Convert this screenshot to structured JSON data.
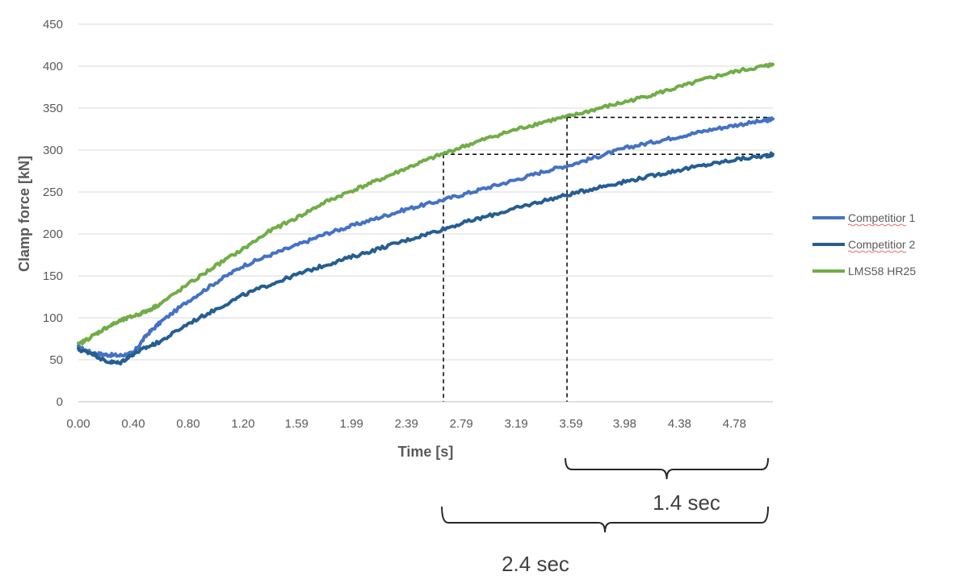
{
  "chart_data": {
    "type": "line",
    "xlabel": "Time [s]",
    "ylabel": "Clamp force [kN]",
    "xlim": [
      0,
      5.06
    ],
    "ylim": [
      0,
      450
    ],
    "x_ticks": [
      "0.00",
      "0.40",
      "0.80",
      "1.20",
      "1.59",
      "1.99",
      "2.39",
      "2.79",
      "3.19",
      "3.59",
      "3.98",
      "4.38",
      "4.78"
    ],
    "x_tick_values": [
      0.0,
      0.4,
      0.8,
      1.2,
      1.59,
      1.99,
      2.39,
      2.79,
      3.19,
      3.59,
      3.98,
      4.38,
      4.78
    ],
    "y_ticks": [
      0,
      50,
      100,
      150,
      200,
      250,
      300,
      350,
      400,
      450
    ],
    "grid": "horizontal",
    "legend_position": "right",
    "series": [
      {
        "name": "Competitior 1",
        "color": "#4472C4",
        "x": [
          0,
          0.1,
          0.2,
          0.3,
          0.4,
          0.5,
          0.6,
          0.8,
          1.0,
          1.2,
          1.4,
          1.6,
          1.8,
          2.0,
          2.2,
          2.4,
          2.6,
          2.8,
          3.0,
          3.2,
          3.4,
          3.6,
          3.8,
          4.0,
          4.2,
          4.4,
          4.6,
          4.8,
          5.0,
          5.06
        ],
        "y": [
          65,
          58,
          56,
          55,
          58,
          80,
          95,
          120,
          142,
          162,
          175,
          187,
          200,
          210,
          220,
          230,
          238,
          247,
          256,
          265,
          275,
          283,
          293,
          303,
          310,
          317,
          324,
          330,
          335,
          337
        ]
      },
      {
        "name": "Competitior 2",
        "color": "#255E91",
        "x": [
          0,
          0.1,
          0.2,
          0.3,
          0.4,
          0.5,
          0.6,
          0.8,
          1.0,
          1.2,
          1.4,
          1.6,
          1.8,
          2.0,
          2.2,
          2.4,
          2.6,
          2.8,
          3.0,
          3.2,
          3.4,
          3.6,
          3.8,
          4.0,
          4.2,
          4.4,
          4.6,
          4.8,
          5.0,
          5.06
        ],
        "y": [
          62,
          58,
          48,
          46,
          57,
          65,
          72,
          93,
          110,
          127,
          140,
          152,
          163,
          173,
          183,
          193,
          203,
          213,
          222,
          231,
          240,
          248,
          256,
          263,
          270,
          277,
          283,
          289,
          293,
          295
        ]
      },
      {
        "name": "LMS58 HR25",
        "color": "#70AD47",
        "x": [
          0,
          0.1,
          0.2,
          0.3,
          0.4,
          0.5,
          0.6,
          0.8,
          1.0,
          1.2,
          1.4,
          1.6,
          1.8,
          2.0,
          2.2,
          2.4,
          2.6,
          2.8,
          3.0,
          3.2,
          3.4,
          3.6,
          3.8,
          4.0,
          4.2,
          4.4,
          4.6,
          4.8,
          5.0,
          5.06
        ],
        "y": [
          68,
          78,
          88,
          96,
          102,
          108,
          117,
          140,
          162,
          182,
          204,
          220,
          238,
          252,
          265,
          279,
          292,
          304,
          315,
          325,
          334,
          341,
          350,
          358,
          367,
          376,
          386,
          394,
          400,
          402
        ]
      }
    ],
    "annotations": [
      {
        "label": "2.4 sec",
        "x_start": 2.66,
        "x_end": 5.06,
        "y_level": 295
      },
      {
        "label": "1.4 sec",
        "x_start": 3.56,
        "x_end": 5.06,
        "y_level": 339
      }
    ]
  }
}
